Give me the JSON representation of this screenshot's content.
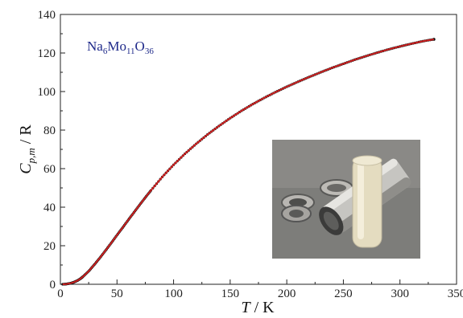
{
  "chart_data": {
    "type": "scatter",
    "annotation": {
      "parts": [
        {
          "text": "Na",
          "sub": false
        },
        {
          "text": "6",
          "sub": true
        },
        {
          "text": "Mo",
          "sub": false
        },
        {
          "text": "11",
          "sub": true
        },
        {
          "text": "O",
          "sub": false
        },
        {
          "text": "36",
          "sub": true
        }
      ]
    },
    "xlabel": {
      "symbol": "T",
      "unit": " / K"
    },
    "ylabel": {
      "symbol": "C",
      "sub": "p,m",
      "unit": " / R"
    },
    "xlim": [
      0,
      350
    ],
    "ylim": [
      0,
      140
    ],
    "xticks": [
      0,
      50,
      100,
      150,
      200,
      250,
      300,
      350
    ],
    "yticks": [
      0,
      20,
      40,
      60,
      80,
      100,
      120,
      140
    ],
    "grid": false,
    "colors": {
      "points": "#111111",
      "fit": "#cc2020"
    },
    "series": [
      {
        "marker": "circle",
        "x": [
          2,
          5,
          8,
          10,
          12,
          15,
          18,
          20,
          25,
          30,
          35,
          40,
          45,
          50,
          55,
          60,
          65,
          70,
          75,
          80,
          90,
          100,
          110,
          120,
          130,
          140,
          150,
          160,
          170,
          180,
          190,
          200,
          210,
          220,
          230,
          240,
          250,
          260,
          270,
          280,
          290,
          300,
          310,
          320,
          330
        ],
        "y": [
          0.0,
          0.1,
          0.4,
          0.7,
          1.1,
          1.9,
          3.0,
          4.0,
          6.8,
          10.2,
          13.8,
          17.6,
          21.5,
          25.5,
          29.4,
          33.4,
          37.3,
          41.2,
          45.0,
          48.7,
          55.7,
          62.0,
          67.7,
          72.9,
          77.7,
          82.1,
          86.2,
          90.0,
          93.5,
          96.7,
          99.7,
          102.5,
          105.1,
          107.6,
          110.0,
          112.3,
          114.4,
          116.5,
          118.4,
          120.2,
          121.9,
          123.4,
          124.8,
          126.1,
          127.1
        ]
      }
    ]
  },
  "inset_photo": {
    "description_icon": "photo-icon"
  }
}
